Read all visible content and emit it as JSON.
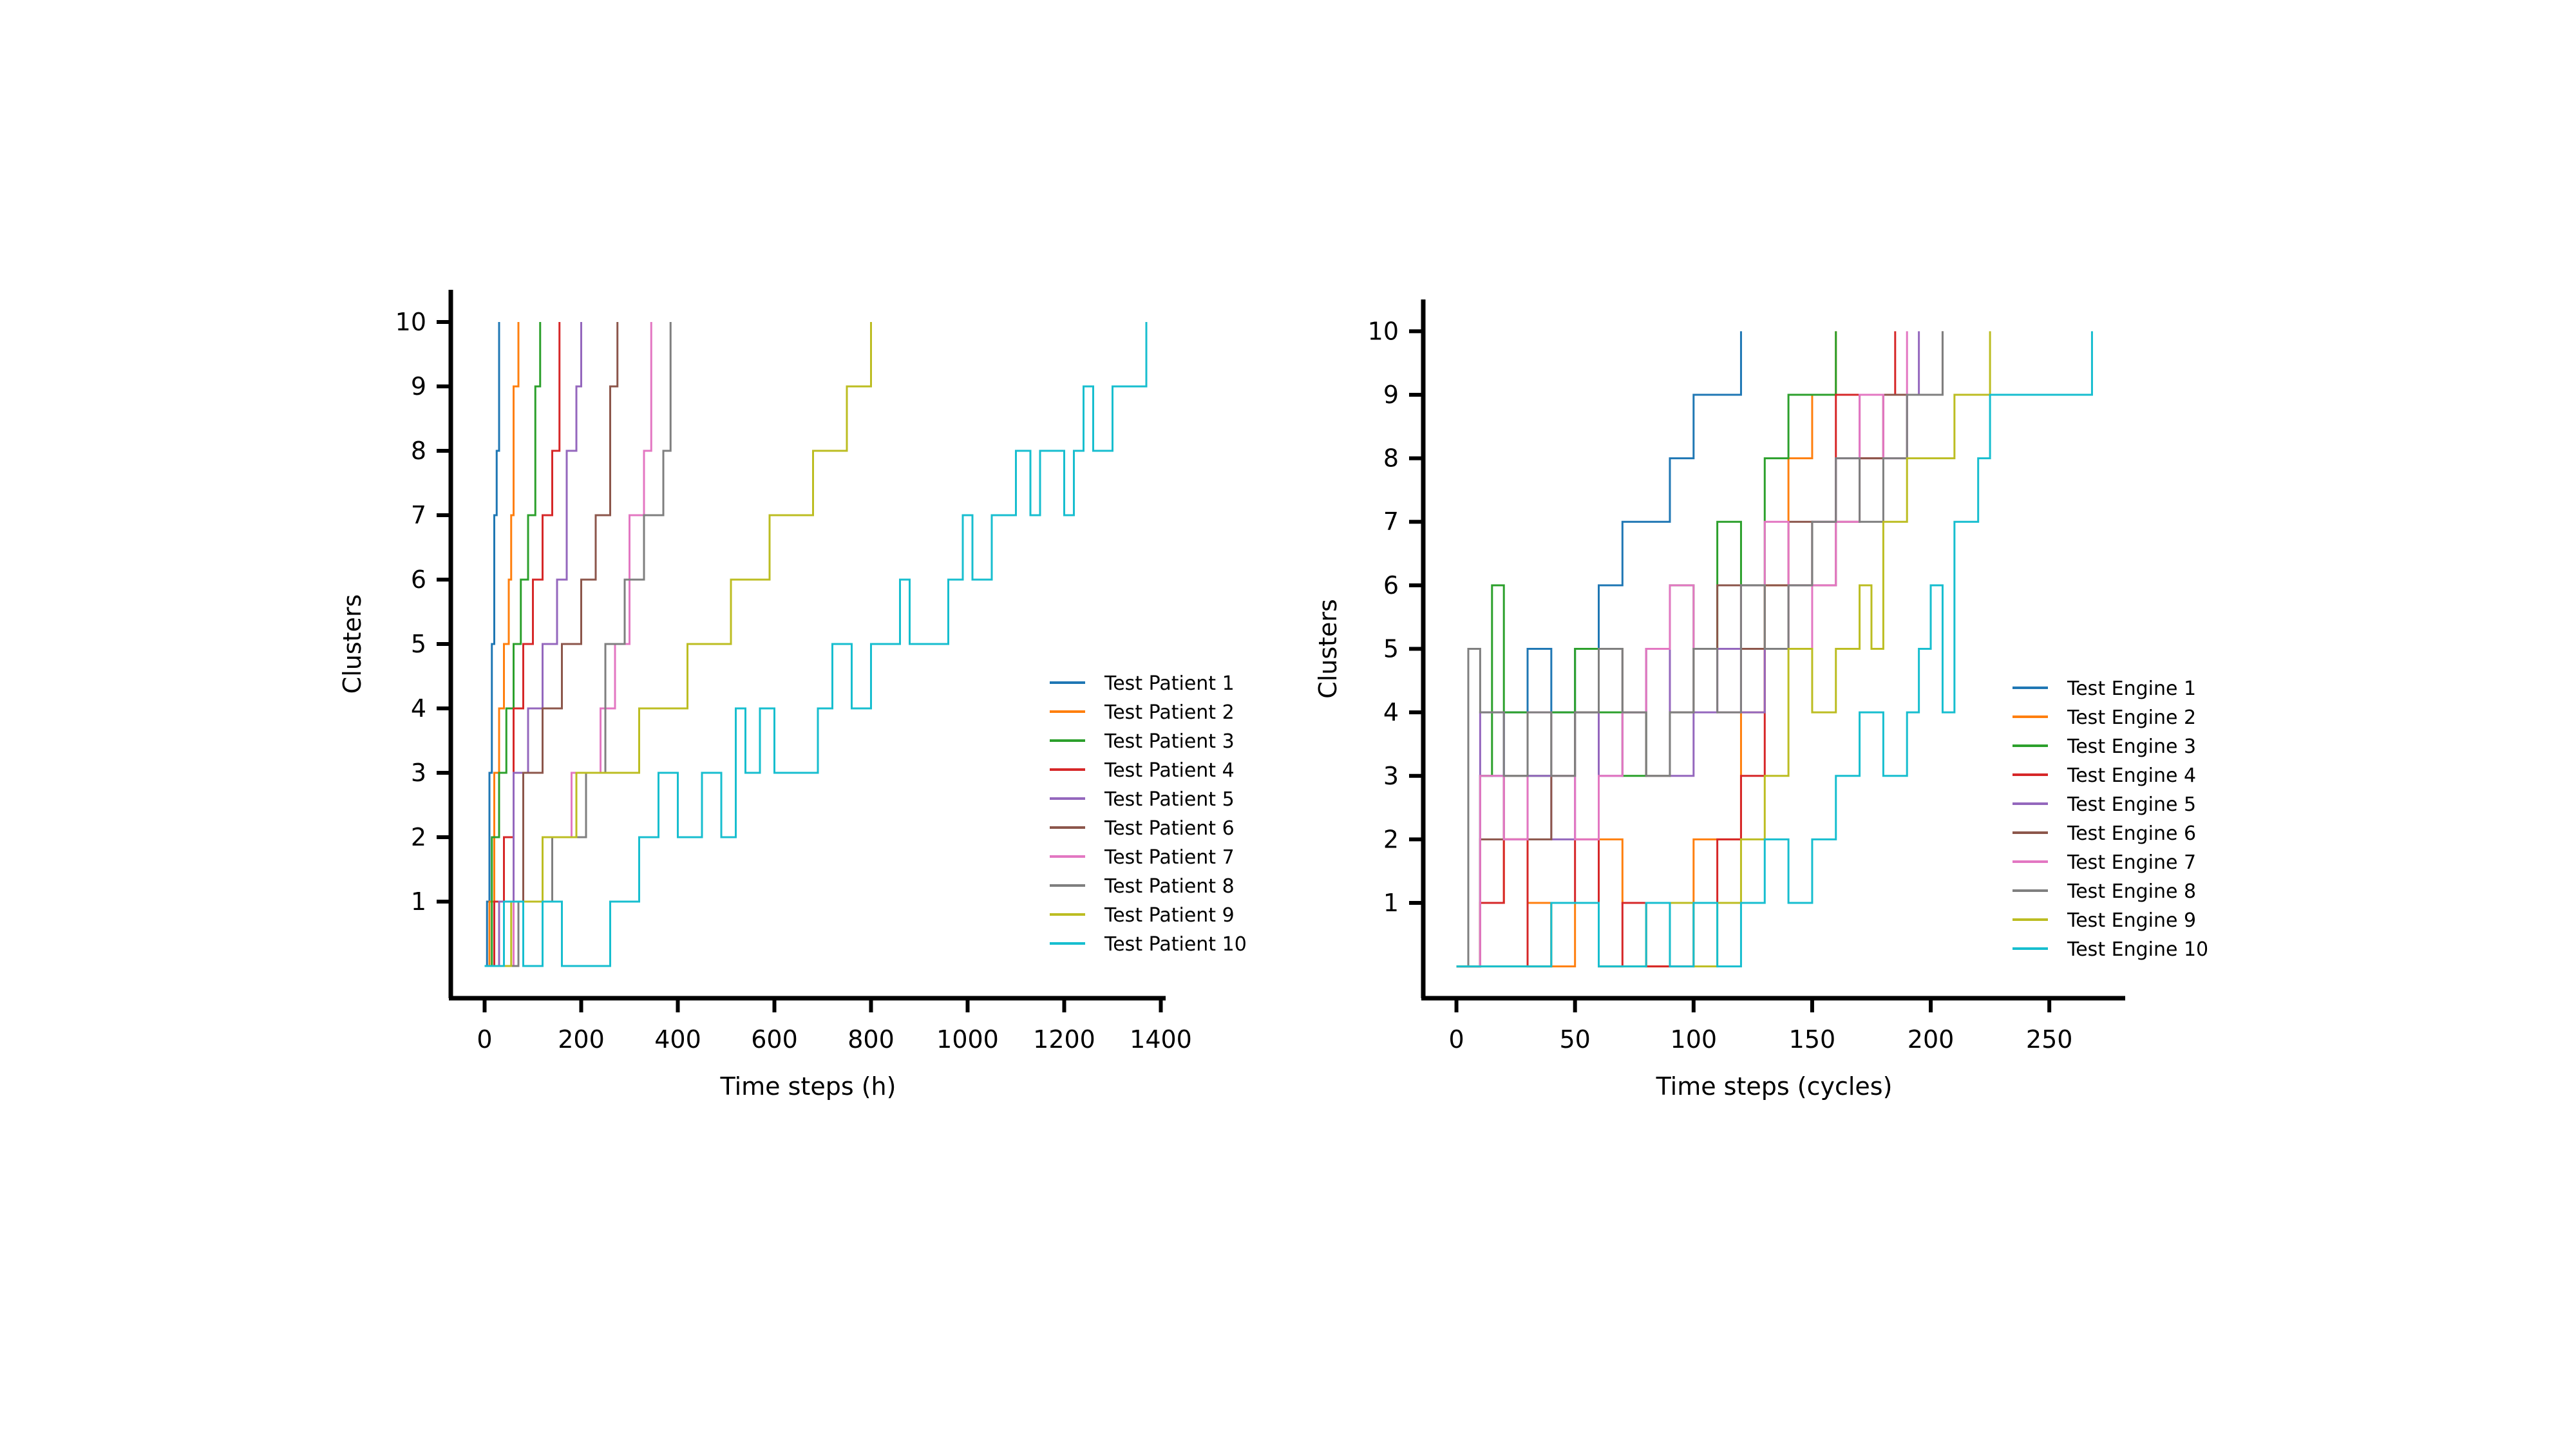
{
  "chart_data": [
    {
      "type": "line",
      "xlabel": "Time steps (h)",
      "ylabel": "Clusters",
      "xlim": [
        -70,
        1410
      ],
      "ylim": [
        -0.5,
        10.5
      ],
      "xticks": [
        0,
        200,
        400,
        600,
        800,
        1000,
        1200,
        1400
      ],
      "yticks": [
        1,
        2,
        3,
        4,
        5,
        6,
        7,
        8,
        9,
        10
      ],
      "grid": false,
      "legend_position": "lower-right",
      "series": [
        {
          "name": "Test Patient 1",
          "color": "#1f77b4",
          "x": [
            0,
            5,
            10,
            15,
            20,
            25,
            30
          ],
          "y": [
            0,
            1,
            3,
            5,
            7,
            8,
            10
          ]
        },
        {
          "name": "Test Patient 2",
          "color": "#ff7f0e",
          "x": [
            0,
            10,
            20,
            30,
            40,
            50,
            55,
            60,
            70
          ],
          "y": [
            0,
            1,
            3,
            4,
            5,
            6,
            7,
            9,
            10
          ]
        },
        {
          "name": "Test Patient 3",
          "color": "#2ca02c",
          "x": [
            0,
            15,
            30,
            45,
            60,
            75,
            90,
            105,
            115
          ],
          "y": [
            0,
            2,
            3,
            4,
            5,
            6,
            7,
            9,
            10
          ]
        },
        {
          "name": "Test Patient 4",
          "color": "#d62728",
          "x": [
            0,
            20,
            40,
            60,
            80,
            100,
            120,
            140,
            155
          ],
          "y": [
            0,
            1,
            2,
            4,
            5,
            6,
            7,
            8,
            10
          ]
        },
        {
          "name": "Test Patient 5",
          "color": "#9467bd",
          "x": [
            0,
            30,
            60,
            90,
            120,
            150,
            170,
            190,
            200
          ],
          "y": [
            0,
            1,
            3,
            4,
            5,
            6,
            8,
            9,
            10
          ]
        },
        {
          "name": "Test Patient 6",
          "color": "#8c564b",
          "x": [
            0,
            40,
            80,
            120,
            160,
            200,
            230,
            260,
            275
          ],
          "y": [
            0,
            1,
            3,
            4,
            5,
            6,
            7,
            9,
            10
          ]
        },
        {
          "name": "Test Patient 7",
          "color": "#e377c2",
          "x": [
            0,
            60,
            120,
            180,
            240,
            270,
            300,
            330,
            345
          ],
          "y": [
            0,
            1,
            2,
            3,
            4,
            5,
            7,
            8,
            10
          ]
        },
        {
          "name": "Test Patient 8",
          "color": "#7f7f7f",
          "x": [
            0,
            70,
            140,
            210,
            250,
            290,
            330,
            370,
            385
          ],
          "y": [
            0,
            1,
            2,
            3,
            5,
            6,
            7,
            8,
            10
          ]
        },
        {
          "name": "Test Patient 9",
          "color": "#bcbd22",
          "x": [
            0,
            55,
            120,
            190,
            320,
            420,
            510,
            590,
            680,
            750,
            800
          ],
          "y": [
            0,
            1,
            2,
            3,
            4,
            5,
            6,
            7,
            8,
            9,
            10
          ]
        },
        {
          "name": "Test Patient 10",
          "color": "#17becf",
          "x": [
            0,
            40,
            80,
            120,
            160,
            260,
            320,
            360,
            400,
            450,
            490,
            520,
            540,
            570,
            600,
            690,
            720,
            760,
            800,
            860,
            880,
            960,
            990,
            1010,
            1050,
            1100,
            1130,
            1150,
            1200,
            1220,
            1240,
            1260,
            1300,
            1340,
            1370
          ],
          "y": [
            0,
            1,
            0,
            1,
            0,
            1,
            2,
            3,
            2,
            3,
            2,
            4,
            3,
            4,
            3,
            4,
            5,
            4,
            5,
            6,
            5,
            6,
            7,
            6,
            7,
            8,
            7,
            8,
            7,
            8,
            9,
            8,
            9,
            9,
            10
          ]
        }
      ]
    },
    {
      "type": "line",
      "xlabel": "Time steps (cycles)",
      "ylabel": "Clusters",
      "xlim": [
        -14,
        282
      ],
      "ylim": [
        -0.5,
        10.5
      ],
      "xticks": [
        0,
        50,
        100,
        150,
        200,
        250
      ],
      "yticks": [
        1,
        2,
        3,
        4,
        5,
        6,
        7,
        8,
        9,
        10
      ],
      "grid": false,
      "legend_position": "lower-right",
      "series": [
        {
          "name": "Test Engine 1",
          "color": "#1f77b4",
          "x": [
            0,
            10,
            20,
            30,
            40,
            50,
            60,
            70,
            80,
            90,
            100,
            110,
            120
          ],
          "y": [
            0,
            3,
            4,
            5,
            4,
            5,
            6,
            7,
            7,
            8,
            9,
            9,
            10
          ]
        },
        {
          "name": "Test Engine 2",
          "color": "#ff7f0e",
          "x": [
            0,
            10,
            20,
            30,
            40,
            50,
            60,
            70,
            80,
            90,
            100,
            110,
            120,
            130,
            140,
            150,
            160
          ],
          "y": [
            0,
            1,
            2,
            1,
            0,
            1,
            2,
            1,
            0,
            1,
            2,
            2,
            4,
            6,
            8,
            9,
            10
          ]
        },
        {
          "name": "Test Engine 3",
          "color": "#2ca02c",
          "x": [
            0,
            10,
            15,
            20,
            30,
            40,
            50,
            60,
            70,
            80,
            90,
            100,
            110,
            120,
            130,
            140,
            150,
            160
          ],
          "y": [
            0,
            3,
            6,
            4,
            3,
            4,
            5,
            4,
            3,
            5,
            6,
            5,
            7,
            6,
            8,
            9,
            9,
            10
          ]
        },
        {
          "name": "Test Engine 4",
          "color": "#d62728",
          "x": [
            0,
            10,
            20,
            30,
            40,
            50,
            60,
            70,
            80,
            90,
            100,
            110,
            120,
            130,
            140,
            150,
            160,
            170,
            180,
            185
          ],
          "y": [
            0,
            1,
            2,
            0,
            1,
            2,
            0,
            1,
            0,
            0,
            1,
            2,
            3,
            5,
            6,
            7,
            9,
            8,
            9,
            10
          ]
        },
        {
          "name": "Test Engine 5",
          "color": "#9467bd",
          "x": [
            0,
            10,
            20,
            30,
            40,
            50,
            60,
            70,
            80,
            90,
            100,
            110,
            120,
            130,
            140,
            150,
            160,
            170,
            180,
            190,
            195
          ],
          "y": [
            0,
            4,
            2,
            3,
            2,
            4,
            3,
            4,
            5,
            3,
            4,
            5,
            4,
            5,
            6,
            7,
            8,
            9,
            8,
            9,
            10
          ]
        },
        {
          "name": "Test Engine 6",
          "color": "#8c564b",
          "x": [
            0,
            10,
            20,
            30,
            40,
            50,
            60,
            70,
            80,
            90,
            100,
            110,
            120,
            130,
            140,
            150,
            160,
            170,
            180,
            190,
            200,
            205
          ],
          "y": [
            0,
            2,
            3,
            2,
            3,
            4,
            5,
            4,
            3,
            4,
            5,
            6,
            5,
            6,
            7,
            6,
            7,
            8,
            9,
            9,
            9,
            10
          ]
        },
        {
          "name": "Test Engine 7",
          "color": "#e377c2",
          "x": [
            0,
            10,
            20,
            30,
            40,
            50,
            60,
            70,
            80,
            90,
            100,
            110,
            120,
            130,
            140,
            150,
            160,
            170,
            180,
            190
          ],
          "y": [
            0,
            3,
            2,
            4,
            3,
            2,
            3,
            4,
            5,
            6,
            5,
            4,
            6,
            7,
            5,
            6,
            7,
            9,
            8,
            10
          ]
        },
        {
          "name": "Test Engine 8",
          "color": "#7f7f7f",
          "x": [
            0,
            5,
            10,
            20,
            30,
            40,
            50,
            60,
            70,
            80,
            90,
            100,
            110,
            120,
            130,
            140,
            150,
            160,
            170,
            180,
            190,
            200,
            205
          ],
          "y": [
            0,
            5,
            4,
            3,
            4,
            3,
            4,
            5,
            4,
            3,
            4,
            5,
            4,
            6,
            5,
            6,
            7,
            8,
            7,
            8,
            9,
            9,
            10
          ]
        },
        {
          "name": "Test Engine 9",
          "color": "#bcbd22",
          "x": [
            0,
            20,
            40,
            60,
            80,
            100,
            110,
            120,
            130,
            140,
            150,
            160,
            170,
            175,
            180,
            190,
            200,
            210,
            220,
            225
          ],
          "y": [
            0,
            0,
            1,
            0,
            1,
            0,
            1,
            2,
            3,
            5,
            4,
            5,
            6,
            5,
            7,
            8,
            8,
            9,
            9,
            10
          ]
        },
        {
          "name": "Test Engine 10",
          "color": "#17becf",
          "x": [
            0,
            20,
            40,
            60,
            80,
            90,
            100,
            110,
            120,
            130,
            140,
            150,
            160,
            170,
            180,
            190,
            195,
            200,
            205,
            210,
            220,
            225,
            240,
            255,
            268
          ],
          "y": [
            0,
            0,
            1,
            0,
            1,
            0,
            1,
            0,
            1,
            2,
            1,
            2,
            3,
            4,
            3,
            4,
            5,
            6,
            4,
            7,
            8,
            9,
            9,
            9,
            10
          ]
        }
      ]
    }
  ]
}
